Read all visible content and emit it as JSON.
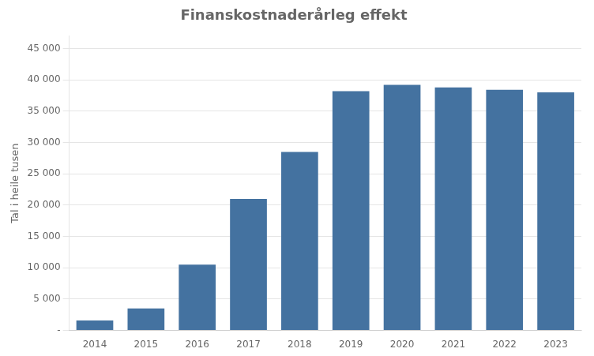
{
  "chart_data": {
    "type": "bar",
    "title": "Finanskostnaderårleg effekt",
    "ylabel": "Tal i heile tusen",
    "categories": [
      "2014",
      "2015",
      "2016",
      "2017",
      "2018",
      "2019",
      "2020",
      "2021",
      "2022",
      "2023"
    ],
    "values": [
      1600,
      3500,
      10500,
      21000,
      28500,
      38200,
      39200,
      38800,
      38400,
      38000
    ],
    "color": "#4472A0",
    "ylim": [
      0,
      47000
    ],
    "yticks": [
      {
        "value": 0,
        "label": "-"
      },
      {
        "value": 5000,
        "label": "5 000"
      },
      {
        "value": 10000,
        "label": "10 000"
      },
      {
        "value": 15000,
        "label": "15 000"
      },
      {
        "value": 20000,
        "label": "20 000"
      },
      {
        "value": 25000,
        "label": "25 000"
      },
      {
        "value": 30000,
        "label": "30 000"
      },
      {
        "value": 35000,
        "label": "35 000"
      },
      {
        "value": 40000,
        "label": "40 000"
      },
      {
        "value": 45000,
        "label": "45 000"
      }
    ],
    "grid": true
  }
}
